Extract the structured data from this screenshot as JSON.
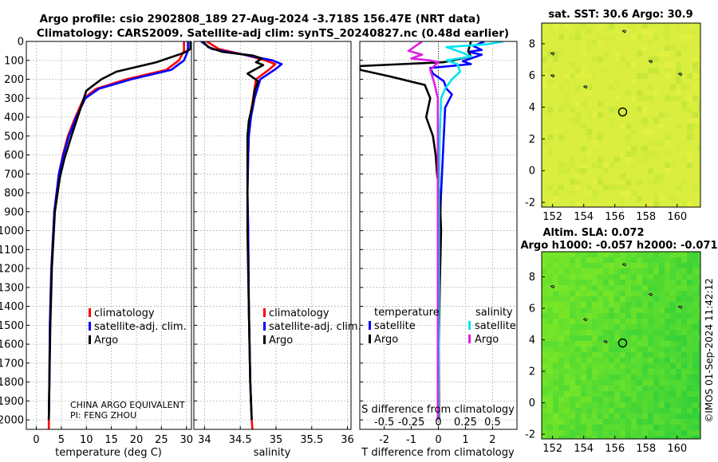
{
  "header": {
    "title_line1": "Argo profile: csio 2902808_189 27-Aug-2024 -3.718S 156.47E (NRT data)",
    "title_line2": "Climatology: CARS2009. Satellite-adj clim: synTS_20240827.nc (0.48d earlier)"
  },
  "credits": {
    "agency": "CHINA ARGO EQUIVALENT",
    "pi": "PI: FENG ZHOU"
  },
  "timestamp": "©IMOS 01-Sep-2024 11:42:12",
  "colors": {
    "climatology": "#ff0000",
    "satellite": "#0000ff",
    "argo": "#000000",
    "sat_salinity": "#00e5ee",
    "argo_salinity": "#e020e0"
  },
  "chart_data": [
    {
      "id": "temperature",
      "type": "line",
      "xlabel": "temperature (deg C)",
      "ylabel": "",
      "xlim": [
        -2,
        31
      ],
      "ylim": [
        2050,
        0
      ],
      "xticks": [
        0,
        5,
        10,
        15,
        20,
        25,
        30
      ],
      "xtick_labels": [
        "0",
        "5",
        "10",
        "15",
        "20",
        "25",
        "30"
      ],
      "yticks": [
        0,
        100,
        200,
        300,
        400,
        500,
        600,
        700,
        800,
        900,
        1000,
        1100,
        1200,
        1300,
        1400,
        1500,
        1600,
        1700,
        1800,
        1900,
        2000
      ],
      "ytick_labels": [
        "0",
        "100",
        "200",
        "300",
        "400",
        "500",
        "600",
        "700",
        "800",
        "900",
        "1000",
        "1100",
        "1200",
        "1300",
        "1400",
        "1500",
        "1600",
        "1700",
        "1800",
        "1900",
        "2000"
      ],
      "legend": [
        "climatology",
        "satellite-adj. clim.",
        "Argo"
      ],
      "series": [
        {
          "name": "climatology",
          "color": "#ff0000",
          "x": [
            29.5,
            29.5,
            28.5,
            26,
            18,
            12,
            9.5,
            7.8,
            6.3,
            5.3,
            4.5,
            3.6,
            3.0,
            2.7,
            2.6,
            2.5,
            2.5
          ],
          "y": [
            0,
            50,
            100,
            150,
            200,
            250,
            300,
            400,
            500,
            600,
            700,
            900,
            1200,
            1500,
            1800,
            2000,
            2050
          ]
        },
        {
          "name": "satellite-adj. clim.",
          "color": "#0000ff",
          "x": [
            30.3,
            30.3,
            29.5,
            27,
            19,
            12.5,
            9.8,
            8,
            6.5,
            5.4,
            4.5,
            3.6,
            3.0,
            2.7,
            2.6,
            2.5
          ],
          "y": [
            0,
            50,
            100,
            150,
            200,
            250,
            300,
            400,
            500,
            600,
            700,
            900,
            1200,
            1500,
            1800,
            2000
          ]
        },
        {
          "name": "Argo",
          "color": "#000000",
          "x": [
            30.8,
            30.8,
            29.5,
            24,
            16,
            13,
            10,
            8.5,
            7,
            5.6,
            4.7,
            3.7,
            3.1,
            2.8,
            2.6,
            2.5
          ],
          "y": [
            0,
            40,
            60,
            110,
            160,
            200,
            260,
            380,
            500,
            620,
            720,
            900,
            1200,
            1500,
            1800,
            2000
          ]
        }
      ]
    },
    {
      "id": "salinity",
      "type": "line",
      "xlabel": "salinity",
      "xlim": [
        33.85,
        36.05
      ],
      "ylim": [
        2050,
        0
      ],
      "xticks": [
        34,
        34.5,
        35,
        35.5,
        36
      ],
      "xtick_labels": [
        "34",
        "34.5",
        "35",
        "35.5",
        "36"
      ],
      "legend": [
        "climatology",
        "satellite-adj. clim.",
        "Argo"
      ],
      "series": [
        {
          "name": "climatology",
          "color": "#ff0000",
          "x": [
            34.03,
            34.2,
            34.55,
            34.85,
            34.99,
            34.9,
            34.72,
            34.68,
            34.64,
            34.62,
            34.61,
            34.6,
            34.61,
            34.62,
            34.64,
            34.66,
            34.67
          ],
          "y": [
            0,
            40,
            70,
            100,
            120,
            150,
            200,
            300,
            400,
            500,
            600,
            800,
            1000,
            1400,
            1800,
            2000,
            2050
          ]
        },
        {
          "name": "satellite-adj. clim.",
          "color": "#0000ff",
          "x": [
            33.95,
            34.1,
            34.55,
            34.95,
            35.08,
            34.98,
            34.78,
            34.7,
            34.65,
            34.62,
            34.61,
            34.6,
            34.61,
            34.62,
            34.64,
            34.66
          ],
          "y": [
            0,
            40,
            70,
            100,
            120,
            150,
            200,
            300,
            400,
            500,
            600,
            800,
            1000,
            1400,
            1800,
            2000
          ]
        },
        {
          "name": "Argo",
          "color": "#000000",
          "x": [
            33.98,
            34.05,
            34.25,
            34.68,
            34.8,
            34.72,
            34.82,
            34.6,
            34.75,
            34.7,
            34.68,
            34.62,
            34.6,
            34.6,
            34.6,
            34.62,
            34.64,
            34.66
          ],
          "y": [
            0,
            30,
            55,
            75,
            90,
            110,
            125,
            170,
            210,
            260,
            320,
            420,
            500,
            700,
            1000,
            1400,
            1800,
            2000
          ]
        }
      ]
    },
    {
      "id": "difference",
      "type": "line",
      "xlabel": "T difference from climatology",
      "xlabel_top": "S difference from climatology",
      "xlim": [
        -2.9,
        2.9
      ],
      "ylim": [
        2050,
        0
      ],
      "xticks": [
        -2,
        -1,
        0,
        1,
        2
      ],
      "xtick_labels": [
        "-2",
        "-1",
        "0",
        "1",
        "2"
      ],
      "xticks_salinity": [
        -0.5,
        -0.25,
        0,
        0.25,
        0.5
      ],
      "xtick_labels_salinity": [
        "-0.5",
        "-0.25",
        "0",
        "0.25",
        "0.5"
      ],
      "legend_titles": [
        "temperature",
        "salinity"
      ],
      "legend": [
        "satellite",
        "Argo",
        "satellite",
        "Argo"
      ],
      "series": [
        {
          "name": "temperature satellite",
          "color": "#0000ff",
          "x": [
            1.7,
            1.3,
            1.6,
            1.1,
            1.6,
            1.2,
            0.9,
            1.2,
            -0.3,
            -0.2,
            0.2,
            0.3,
            0.5,
            0.25,
            0.2,
            0.15,
            0.1,
            0.05,
            0.02,
            0.02,
            0.02,
            0.02
          ],
          "y": [
            0,
            25,
            45,
            55,
            70,
            90,
            105,
            120,
            140,
            170,
            210,
            250,
            280,
            350,
            500,
            650,
            800,
            1000,
            1300,
            1600,
            1800,
            2000
          ]
        },
        {
          "name": "temperature Argo",
          "color": "#000000",
          "x": [
            1.2,
            1.1,
            1.2,
            0.2,
            -2.9,
            -2.9,
            -1.8,
            -0.5,
            -0.3,
            -0.45,
            -0.2,
            -0.1,
            -0.05,
            0.05,
            0.1,
            0.05,
            0.02,
            0.02
          ],
          "y": [
            0,
            50,
            80,
            110,
            130,
            150,
            185,
            230,
            300,
            400,
            500,
            600,
            700,
            800,
            1000,
            1300,
            1600,
            2000
          ]
        },
        {
          "name": "salinity satellite",
          "color": "#00e5ee",
          "x": [
            2.4,
            1.8,
            0.3,
            0.9,
            1.2,
            0.3,
            0.7,
            0.8,
            0.5,
            0.25,
            0.1,
            0.05,
            0.02,
            0.02,
            0.0
          ],
          "y": [
            0,
            15,
            30,
            60,
            80,
            100,
            120,
            160,
            200,
            250,
            300,
            500,
            800,
            1600,
            2000
          ]
        },
        {
          "name": "salinity Argo",
          "color": "#e020e0",
          "x": [
            -0.6,
            -1.1,
            -0.6,
            -1.0,
            -0.3,
            0.0,
            -0.3,
            -0.15,
            -0.02,
            -0.02
          ],
          "y": [
            0,
            50,
            70,
            90,
            100,
            110,
            150,
            220,
            300,
            2000
          ]
        }
      ]
    },
    {
      "id": "sst_map",
      "type": "heatmap",
      "title": "sat. SST: 30.6 Argo: 30.9",
      "xlim": [
        151.3,
        161.5
      ],
      "ylim": [
        -2.3,
        9.3
      ],
      "xticks": [
        152,
        154,
        156,
        158,
        160
      ],
      "xtick_labels": [
        "152",
        "154",
        "156",
        "158",
        "160"
      ],
      "yticks": [
        -2,
        0,
        2,
        4,
        6,
        8
      ],
      "ytick_labels": [
        "-2",
        "0",
        "2",
        "4",
        "6",
        "8"
      ],
      "marker": [
        156.5,
        3.7
      ],
      "islands": [
        [
          152.0,
          7.4
        ],
        [
          158.3,
          6.9
        ],
        [
          160.2,
          6.1
        ],
        [
          154.1,
          5.3
        ],
        [
          156.6,
          8.8
        ],
        [
          152.0,
          6.0
        ]
      ]
    },
    {
      "id": "sla_map",
      "type": "heatmap",
      "title_line1": "Altim. SLA: 0.072",
      "title_line2": "Argo h1000: -0.057 h2000: -0.071",
      "xlim": [
        151.3,
        161.5
      ],
      "ylim": [
        -2.3,
        9.6
      ],
      "xticks": [
        152,
        154,
        156,
        158,
        160
      ],
      "xtick_labels": [
        "152",
        "154",
        "156",
        "158",
        "160"
      ],
      "yticks": [
        -2,
        0,
        2,
        4,
        6,
        8
      ],
      "ytick_labels": [
        "-2",
        "0",
        "2",
        "4",
        "6",
        "8"
      ],
      "marker": [
        156.5,
        3.8
      ],
      "islands": [
        [
          152.0,
          7.4
        ],
        [
          158.3,
          6.9
        ],
        [
          160.2,
          6.1
        ],
        [
          154.1,
          5.3
        ],
        [
          155.4,
          3.9
        ],
        [
          156.6,
          8.8
        ]
      ]
    }
  ]
}
